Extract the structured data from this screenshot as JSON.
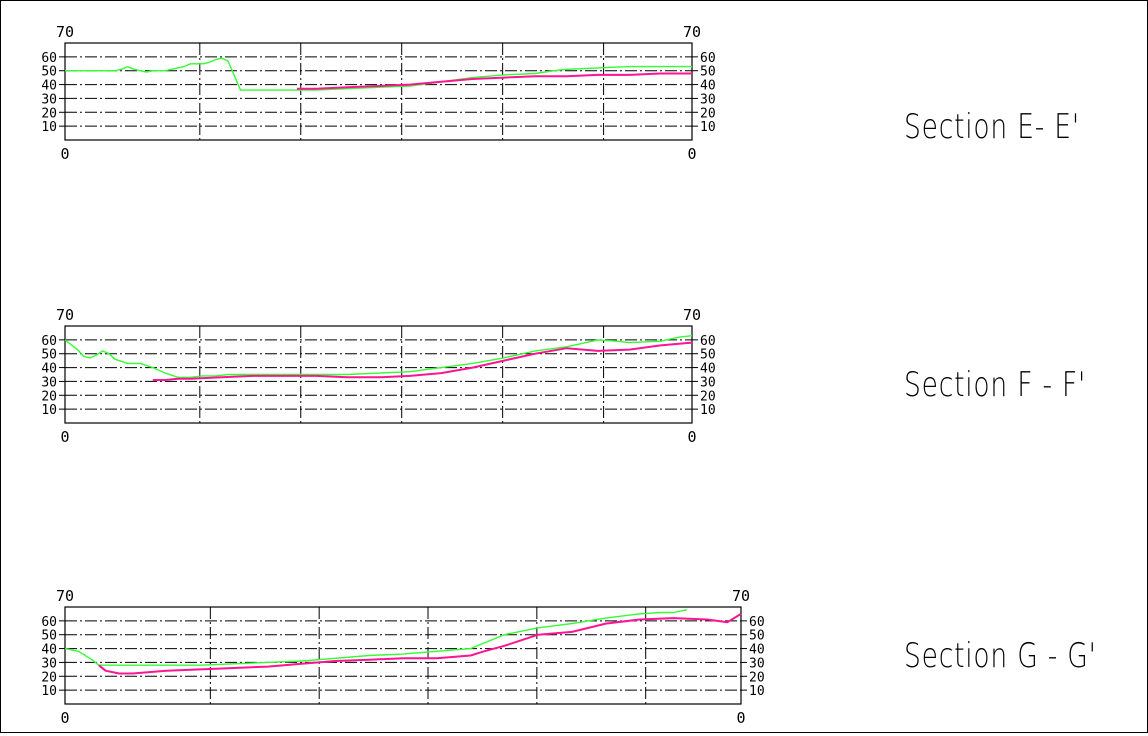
{
  "colors": {
    "existing_ground": "#33ff33",
    "proposed_ground": "#ff1493",
    "grid": "#000000"
  },
  "chart_data": [
    {
      "type": "line",
      "title": "Section E- E'",
      "x_left_label": "0",
      "x_right_label": "0",
      "top_left_label": "70",
      "top_right_label": "70",
      "ylim": [
        0,
        70
      ],
      "yticks": [
        60,
        50,
        40,
        30,
        20,
        10
      ],
      "ytick_labels": [
        "60",
        "50",
        "40",
        "30",
        "20",
        "10"
      ],
      "xlim": [
        0,
        100
      ],
      "grid": true,
      "series": [
        {
          "color": "#33ff33",
          "x": [
            0,
            4,
            8,
            9,
            10,
            11,
            12,
            13,
            14,
            15,
            16,
            19,
            20,
            21,
            22,
            23,
            24,
            25,
            26,
            28,
            30,
            32,
            35,
            40,
            45,
            50,
            55,
            60,
            65,
            70,
            75,
            78,
            80,
            85,
            90,
            95,
            100
          ],
          "y": [
            50,
            50,
            50,
            51,
            53,
            51,
            50,
            49,
            50,
            50,
            50,
            53,
            55,
            55,
            55,
            56,
            58,
            59,
            57,
            36,
            36,
            36,
            36,
            36,
            37,
            38,
            39,
            42,
            45,
            47,
            48,
            50,
            51,
            52,
            53,
            53,
            53
          ]
        },
        {
          "color": "#ff1493",
          "x": [
            37,
            40,
            45,
            50,
            55,
            60,
            65,
            70,
            75,
            80,
            85,
            90,
            95,
            100
          ],
          "y": [
            37,
            37,
            38,
            39,
            40,
            42,
            44,
            45,
            46,
            46,
            47,
            47,
            48,
            48
          ]
        }
      ]
    },
    {
      "type": "line",
      "title": "Section F  -  F'",
      "x_left_label": "0",
      "x_right_label": "0",
      "top_left_label": "70",
      "top_right_label": "70",
      "ylim": [
        0,
        70
      ],
      "yticks": [
        60,
        50,
        40,
        30,
        20,
        10
      ],
      "ytick_labels": [
        "60",
        "50",
        "40",
        "30",
        "20",
        "10"
      ],
      "xlim": [
        0,
        100
      ],
      "grid": true,
      "series": [
        {
          "color": "#33ff33",
          "x": [
            0,
            2,
            3,
            4,
            5,
            6,
            7,
            8,
            10,
            12,
            14,
            16,
            18,
            20,
            22,
            24,
            26,
            28,
            30,
            35,
            40,
            45,
            50,
            55,
            60,
            65,
            70,
            75,
            80,
            85,
            88,
            90,
            95,
            98,
            100
          ],
          "y": [
            60,
            53,
            48,
            47,
            49,
            52,
            50,
            46,
            43,
            43,
            40,
            36,
            33,
            33,
            34,
            34,
            35,
            35,
            35,
            35,
            35,
            35,
            36,
            37,
            40,
            43,
            47,
            52,
            55,
            60,
            59,
            58,
            59,
            62,
            63
          ]
        },
        {
          "color": "#ff1493",
          "x": [
            14,
            16,
            18,
            20,
            25,
            30,
            35,
            40,
            45,
            50,
            55,
            60,
            65,
            70,
            75,
            80,
            85,
            90,
            95,
            100
          ],
          "y": [
            31,
            31,
            32,
            32,
            33,
            34,
            34,
            34,
            33,
            33,
            34,
            36,
            40,
            45,
            50,
            54,
            52,
            53,
            56,
            58
          ]
        }
      ]
    },
    {
      "type": "line",
      "title": "Section G  -  G'",
      "x_left_label": "0",
      "x_right_label": "0",
      "top_left_label": "70",
      "top_right_label": "70",
      "ylim": [
        0,
        70
      ],
      "yticks": [
        60,
        50,
        40,
        30,
        20,
        10
      ],
      "ytick_labels": [
        "60",
        "50",
        "40",
        "30",
        "20",
        "10"
      ],
      "xlim": [
        0,
        100
      ],
      "grid": true,
      "series": [
        {
          "color": "#33ff33",
          "x": [
            0,
            2,
            4,
            5,
            6,
            10,
            15,
            20,
            25,
            30,
            35,
            40,
            45,
            50,
            55,
            60,
            62,
            65,
            70,
            75,
            80,
            85,
            88,
            90,
            92
          ],
          "y": [
            40,
            38,
            32,
            28,
            28,
            28,
            28,
            28,
            29,
            30,
            31,
            33,
            35,
            36,
            38,
            40,
            44,
            50,
            55,
            58,
            62,
            65,
            66,
            66,
            68
          ]
        },
        {
          "color": "#ff1493",
          "x": [
            5,
            6,
            8,
            10,
            15,
            20,
            25,
            30,
            35,
            40,
            45,
            50,
            55,
            60,
            62,
            65,
            70,
            75,
            80,
            85,
            90,
            95,
            98,
            100
          ],
          "y": [
            28,
            24,
            22,
            22,
            24,
            25,
            26,
            27,
            29,
            31,
            32,
            33,
            33,
            35,
            38,
            42,
            50,
            52,
            58,
            61,
            62,
            61,
            59,
            65
          ]
        }
      ]
    }
  ]
}
